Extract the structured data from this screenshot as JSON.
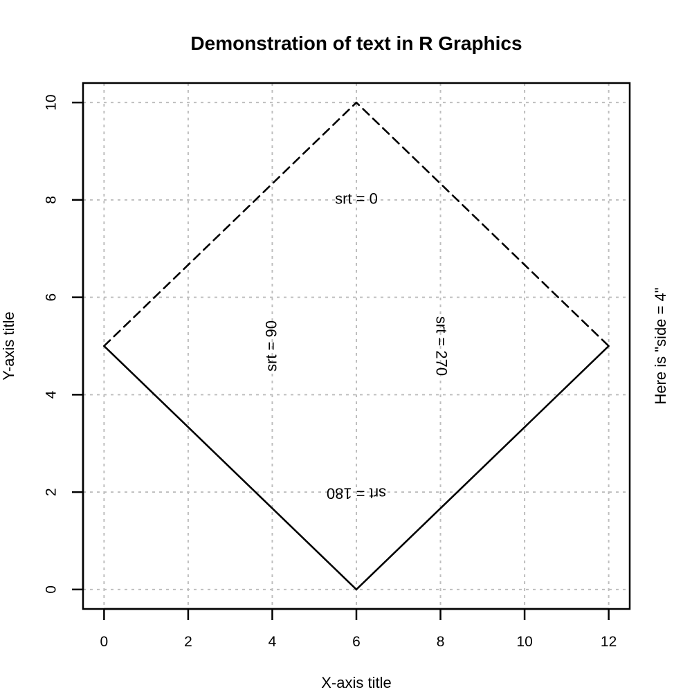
{
  "chart_data": {
    "type": "line",
    "title": "Demonstration of text in R Graphics",
    "xlabel": "X-axis title",
    "ylabel": "Y-axis title",
    "side_label": "Here is \"side = 4\"",
    "xlim": [
      -0.5,
      12.5
    ],
    "ylim": [
      -0.4,
      10.4
    ],
    "x_ticks": [
      0,
      2,
      4,
      6,
      8,
      10,
      12
    ],
    "y_ticks": [
      0,
      2,
      4,
      6,
      8,
      10
    ],
    "x_tick_labels": [
      "0",
      "2",
      "4",
      "6",
      "8",
      "10",
      "12"
    ],
    "y_tick_labels": [
      "0",
      "2",
      "4",
      "6",
      "8",
      "10"
    ],
    "grid": true,
    "series": [
      {
        "x": [
          0,
          6,
          12
        ],
        "y": [
          5,
          10,
          5
        ],
        "line_style": "dashed",
        "color": "#000000"
      },
      {
        "x": [
          0,
          6,
          12
        ],
        "y": [
          5,
          0,
          5
        ],
        "line_style": "solid",
        "color": "#000000"
      }
    ],
    "annotations": [
      {
        "text": "srt = 0",
        "x": 6,
        "y": 8,
        "rotation": 0
      },
      {
        "text": "srt = 90",
        "x": 4,
        "y": 5,
        "rotation": 90
      },
      {
        "text": "srt = 180",
        "x": 6,
        "y": 2,
        "rotation": 180
      },
      {
        "text": "srt = 270",
        "x": 8,
        "y": 5,
        "rotation": 270
      }
    ],
    "colors": {
      "line": "#000000",
      "grid": "#bebebe",
      "frame": "#000000"
    }
  }
}
